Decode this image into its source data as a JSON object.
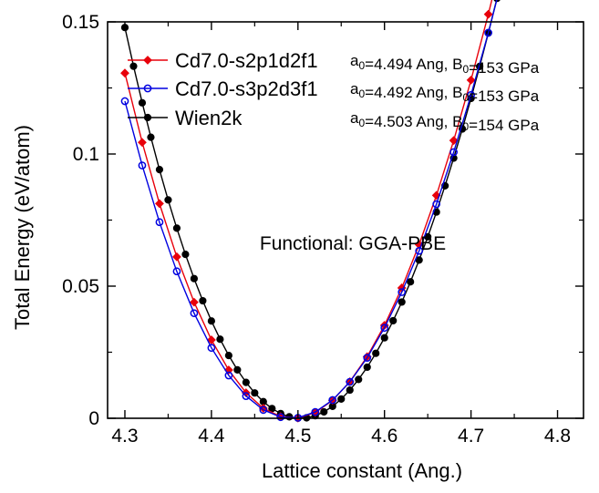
{
  "chart_data": {
    "type": "line",
    "xlabel": "Lattice constant (Ang.)",
    "ylabel": "Total Energy (eV/atom)",
    "xlim": [
      4.28,
      4.83
    ],
    "ylim": [
      0,
      0.15
    ],
    "xticks": [
      4.3,
      4.4,
      4.5,
      4.6,
      4.7,
      4.8
    ],
    "xtick_labels": [
      "4.3",
      "4.4",
      "4.5",
      "4.6",
      "4.7",
      "4.8"
    ],
    "yticks": [
      0,
      0.05,
      0.1,
      0.15
    ],
    "ytick_labels": [
      "0",
      "0.05",
      "0.1",
      "0.15"
    ],
    "grid": false,
    "legend_position": "top-right",
    "annotation": "Functional: GGA-PBE",
    "series": [
      {
        "name": "Cd7.0-s2p1d2f1",
        "note": {
          "a_prefix": "a",
          "a_sub": "0",
          "a_text": "=4.494 Ang, B",
          "b_sub": "0",
          "b_text": "=153 GPa"
        },
        "color": "#e8000b",
        "marker": "diamond-filled",
        "a0": 4.494,
        "curvature": 3.25,
        "xmin": 4.3,
        "xmax": 4.82,
        "xstep": 0.02
      },
      {
        "name": "Cd7.0-s3p2d3f1",
        "note": {
          "a_prefix": "a",
          "a_sub": "0",
          "a_text": "=4.492 Ang, B",
          "b_sub": "0",
          "b_text": "=153 GPa"
        },
        "color": "#0000e0",
        "marker": "circle-open",
        "a0": 4.492,
        "curvature": 3.05,
        "xmin": 4.3,
        "xmax": 4.82,
        "xstep": 0.02
      },
      {
        "name": "Wien2k",
        "note": {
          "a_prefix": "a",
          "a_sub": "0",
          "a_text": "=4.503 Ang, B",
          "b_sub": "0",
          "b_text": "=154 GPa"
        },
        "color": "#000000",
        "marker": "circle-filled",
        "a0": 4.503,
        "curvature": 3.35,
        "xmin": 4.3,
        "xmax": 4.81,
        "xstep": 0.01
      }
    ]
  }
}
